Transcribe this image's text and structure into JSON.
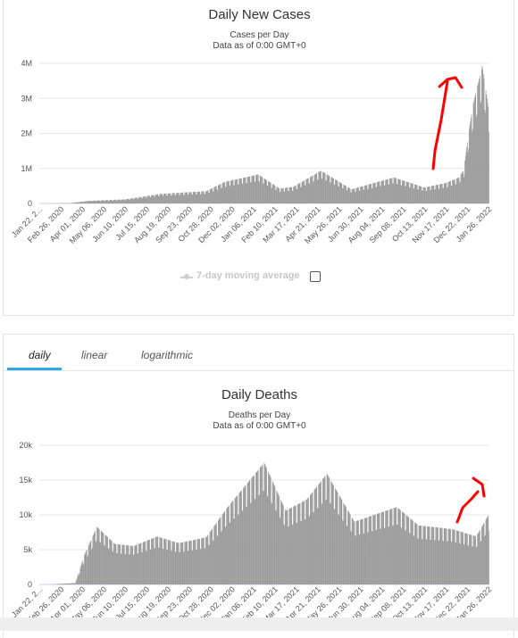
{
  "tabs": [
    {
      "label": "daily",
      "active": true
    },
    {
      "label": "linear",
      "active": false
    },
    {
      "label": "logarithmic",
      "active": false
    }
  ],
  "legend": {
    "label": "7-day moving average"
  },
  "colors": {
    "bars": "#999999",
    "grid": "#e6e6e6",
    "annotation": "#ff0000",
    "tab_accent": "#35a7e8"
  },
  "chart_data": [
    {
      "type": "bar",
      "title": "Daily New Cases",
      "subtitle": "Cases per Day",
      "subtitle2": "Data as of 0:00 GMT+0",
      "ylim": [
        0,
        4000000
      ],
      "yticks": [
        "0",
        "1M",
        "2M",
        "3M",
        "4M"
      ],
      "ytick_values": [
        0,
        1000000,
        2000000,
        3000000,
        4000000
      ],
      "xtick_labels": [
        "Jan 22, 2...",
        "Feb 26, 2020",
        "Apr 01, 2020",
        "May 06, 2020",
        "Jun 10, 2020",
        "Jul 15, 2020",
        "Aug 19, 2020",
        "Sep 23, 2020",
        "Oct 28, 2020",
        "Dec 02, 2020",
        "Jan 06, 2021",
        "Feb 10, 2021",
        "Mar 17, 2021",
        "Apr 21, 2021",
        "May 26, 2021",
        "Jun 30, 2021",
        "Aug 04, 2021",
        "Sep 08, 2021",
        "Oct 13, 2021",
        "Nov 17, 2021",
        "Dec 22, 2021",
        "Jan 26, 2022"
      ],
      "series_profile": {
        "x": [
          "Jan 22, 2020",
          "Mar 01, 2020",
          "Apr 01, 2020",
          "Jun 01, 2020",
          "Aug 01, 2020",
          "Oct 15, 2020",
          "Nov 15, 2020",
          "Jan 10, 2021",
          "Feb 15, 2021",
          "Mar 10, 2021",
          "Apr 25, 2021",
          "Jun 15, 2021",
          "Aug 25, 2021",
          "Oct 15, 2021",
          "Nov 20, 2021",
          "Dec 12, 2021",
          "Dec 20, 2021",
          "Dec 28, 2021",
          "Jan 05, 2022",
          "Jan 20, 2022",
          "Jan 31, 2022"
        ],
        "values": [
          0,
          10000,
          70000,
          110000,
          260000,
          330000,
          580000,
          780000,
          400000,
          450000,
          880000,
          380000,
          700000,
          430000,
          550000,
          700000,
          900000,
          1900000,
          2700000,
          3700000,
          2500000
        ]
      }
    },
    {
      "type": "bar",
      "title": "Daily Deaths",
      "subtitle": "Deaths per Day",
      "subtitle2": "Data as of 0:00 GMT+0",
      "ylim": [
        0,
        20000
      ],
      "yticks": [
        "0",
        "5k",
        "10k",
        "15k",
        "20k"
      ],
      "ytick_values": [
        0,
        5000,
        10000,
        15000,
        20000
      ],
      "xtick_labels": [
        "Jan 22, 2...",
        "Feb 26, 2020",
        "Apr 01, 2020",
        "May 06, 2020",
        "Jun 10, 2020",
        "Jul 15, 2020",
        "Aug 19, 2020",
        "Sep 23, 2020",
        "Oct 28, 2020",
        "Dec 02, 2020",
        "Jan 06, 2021",
        "Feb 10, 2021",
        "Mar 17, 2021",
        "Apr 21, 2021",
        "May 26, 2021",
        "Jun 30, 2021",
        "Aug 04, 2021",
        "Sep 08, 2021",
        "Oct 13, 2021",
        "Nov 17, 2021",
        "Dec 22, 2021",
        "Jan 26, 2022"
      ],
      "series_profile": {
        "x": [
          "Jan 22, 2020",
          "Mar 10, 2020",
          "Mar 25, 2020",
          "Apr 15, 2020",
          "May 15, 2020",
          "Jun 15, 2020",
          "Jul 25, 2020",
          "Aug 30, 2020",
          "Oct 15, 2020",
          "Nov 20, 2020",
          "Jan 20, 2021",
          "Feb 25, 2021",
          "Apr 01, 2021",
          "May 05, 2021",
          "Jun 20, 2021",
          "Aug 30, 2021",
          "Oct 05, 2021",
          "Dec 01, 2021",
          "Jan 10, 2022",
          "Jan 31, 2022"
        ],
        "values": [
          0,
          200,
          4000,
          7800,
          5500,
          5200,
          6500,
          5600,
          6400,
          10500,
          16500,
          10000,
          11500,
          15000,
          8500,
          10500,
          8000,
          7500,
          6500,
          9500
        ]
      }
    }
  ]
}
